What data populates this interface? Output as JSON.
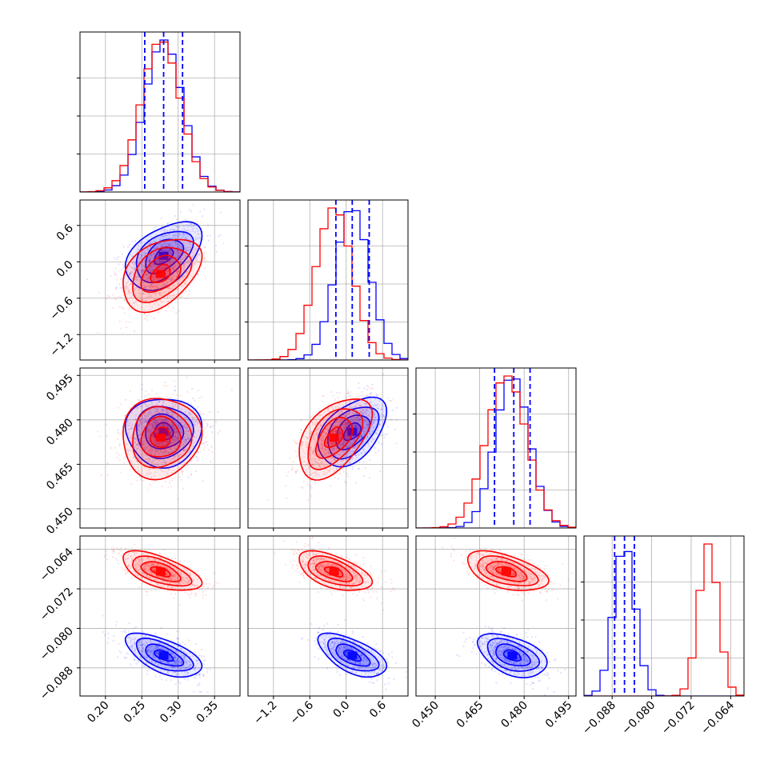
{
  "figure": {
    "type": "corner_plot",
    "colors": {
      "series_a": "#0000ff",
      "series_b": "#ff0000",
      "grid": "#b0b0b0",
      "frame": "#000000"
    },
    "grid": true
  },
  "chart_data": {
    "type": "corner",
    "parameters": [
      {
        "range": [
          0.165,
          0.385
        ],
        "ticks": [
          0.2,
          0.25,
          0.3,
          0.35
        ],
        "tick_labels": [
          "0.20",
          "0.25",
          "0.30",
          "0.35"
        ]
      },
      {
        "range": [
          -1.62,
          1.02
        ],
        "ticks": [
          -1.2,
          -0.6,
          0.0,
          0.6
        ],
        "tick_labels": [
          "−1.2",
          "−0.6",
          "0.0",
          "0.6"
        ]
      },
      {
        "range": [
          0.4435,
          0.4975
        ],
        "ticks": [
          0.45,
          0.465,
          0.48,
          0.495
        ],
        "tick_labels": [
          "0.450",
          "0.465",
          "0.480",
          "0.495"
        ]
      },
      {
        "range": [
          -0.0937,
          -0.0613
        ],
        "ticks": [
          -0.088,
          -0.08,
          -0.072,
          -0.064
        ],
        "tick_labels": [
          "−0.088",
          "−0.080",
          "−0.072",
          "−0.064"
        ]
      }
    ],
    "series": [
      {
        "color": "#0000ff",
        "means": [
          0.28,
          0.1,
          0.476,
          -0.0855
        ],
        "sds": [
          0.026,
          0.28,
          0.0058,
          0.0022
        ],
        "quantiles": [
          [
            0.254,
            0.28,
            0.306
          ],
          [
            -0.17,
            0.1,
            0.38
          ],
          [
            0.47,
            0.4765,
            0.482
          ],
          [
            -0.0875,
            -0.0855,
            -0.0835
          ]
        ],
        "correlations": {
          "0-1": 0.45,
          "0-2": 0.0,
          "1-2": 0.45,
          "0-3": -0.6,
          "1-3": -0.6,
          "2-3": -0.45
        }
      },
      {
        "color": "#ff0000",
        "means": [
          0.276,
          -0.2,
          0.474,
          -0.0685
        ],
        "sds": [
          0.027,
          0.3,
          0.0068,
          0.002
        ],
        "quantiles": null,
        "correlations": {
          "0-1": 0.4,
          "0-2": 0.05,
          "1-2": 0.5,
          "0-3": -0.6,
          "1-3": -0.55,
          "2-3": -0.5
        }
      }
    ],
    "panels": "lower-triangle 2D density contours with scatter points; diagonal 1D step histograms",
    "contour_levels": 4,
    "quantile_lines_style": "dashed"
  }
}
